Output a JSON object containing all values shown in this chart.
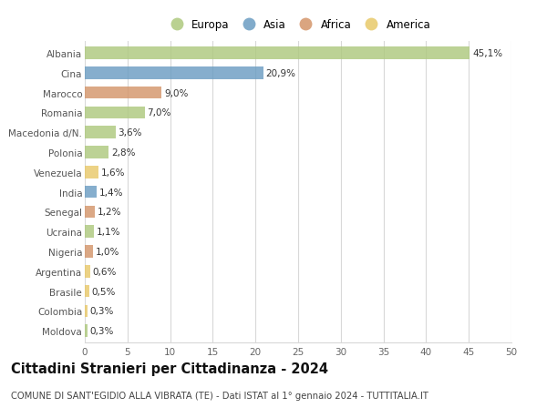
{
  "countries": [
    "Albania",
    "Cina",
    "Marocco",
    "Romania",
    "Macedonia d/N.",
    "Polonia",
    "Venezuela",
    "India",
    "Senegal",
    "Ucraina",
    "Nigeria",
    "Argentina",
    "Brasile",
    "Colombia",
    "Moldova"
  ],
  "values": [
    45.1,
    20.9,
    9.0,
    7.0,
    3.6,
    2.8,
    1.6,
    1.4,
    1.2,
    1.1,
    1.0,
    0.6,
    0.5,
    0.3,
    0.3
  ],
  "labels": [
    "45,1%",
    "20,9%",
    "9,0%",
    "7,0%",
    "3,6%",
    "2,8%",
    "1,6%",
    "1,4%",
    "1,2%",
    "1,1%",
    "1,0%",
    "0,6%",
    "0,5%",
    "0,3%",
    "0,3%"
  ],
  "continents": [
    "Europa",
    "Asia",
    "Africa",
    "Europa",
    "Europa",
    "Europa",
    "America",
    "Asia",
    "Africa",
    "Europa",
    "Africa",
    "America",
    "America",
    "America",
    "Europa"
  ],
  "colors": {
    "Europa": "#aec97e",
    "Asia": "#6b9dc2",
    "Africa": "#d4956a",
    "America": "#e8c96a"
  },
  "legend_order": [
    "Europa",
    "Asia",
    "Africa",
    "America"
  ],
  "title": "Cittadini Stranieri per Cittadinanza - 2024",
  "subtitle": "COMUNE DI SANT'EGIDIO ALLA VIBRATA (TE) - Dati ISTAT al 1° gennaio 2024 - TUTTITALIA.IT",
  "xlim": [
    0,
    50
  ],
  "xticks": [
    0,
    5,
    10,
    15,
    20,
    25,
    30,
    35,
    40,
    45,
    50
  ],
  "bg_color": "#ffffff",
  "grid_color": "#d8d8d8",
  "bar_height": 0.62,
  "label_fontsize": 7.5,
  "tick_fontsize": 7.5,
  "title_fontsize": 10.5,
  "subtitle_fontsize": 7.2
}
